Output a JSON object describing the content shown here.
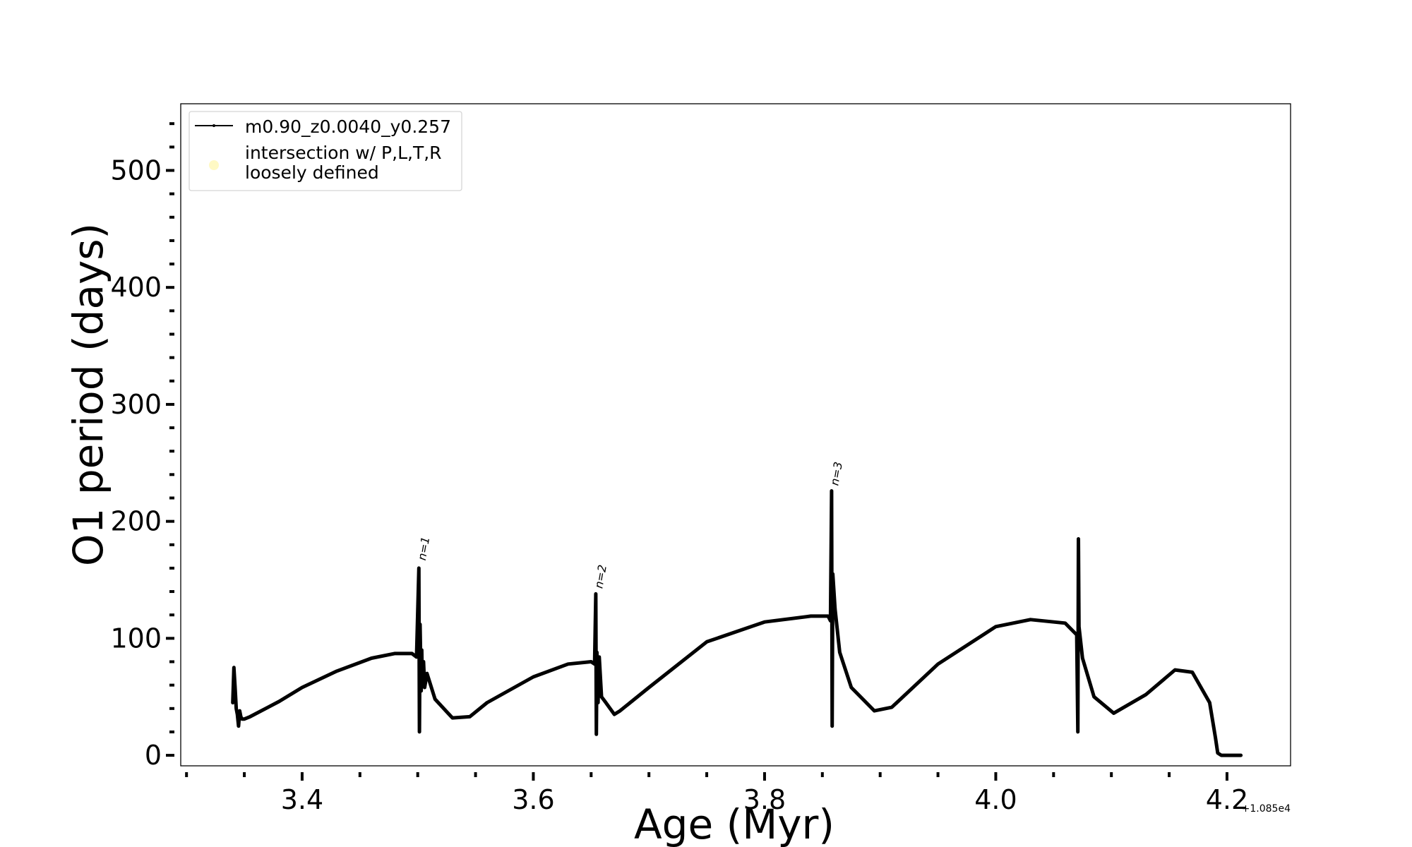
{
  "chart_data": {
    "type": "line",
    "xlabel": "Age (Myr)",
    "ylabel": "O1 period (days)",
    "x_offset_label": "+1.085e4",
    "x_offset": 10850,
    "xlim": [
      10853.295,
      10854.255
    ],
    "ylim": [
      -9,
      557
    ],
    "xticks": [
      3.4,
      3.6,
      3.8,
      4.0,
      4.2
    ],
    "xtick_labels": [
      "3.4",
      "3.6",
      "3.8",
      "4.0",
      "4.2"
    ],
    "yticks": [
      0,
      100,
      200,
      300,
      400,
      500
    ],
    "ytick_labels": [
      "0",
      "100",
      "200",
      "300",
      "400",
      "500"
    ],
    "legend_position": "upper-left",
    "series": [
      {
        "name": "m0.90_z0.0040_y0.257",
        "color": "#000000",
        "x": [
          3.34,
          3.341,
          3.342,
          3.343,
          3.344,
          3.345,
          3.346,
          3.347,
          3.348,
          3.35,
          3.355,
          3.38,
          3.4,
          3.43,
          3.46,
          3.48,
          3.495,
          3.499,
          3.501,
          3.5015,
          3.502,
          3.503,
          3.5035,
          3.504,
          3.505,
          3.506,
          3.508,
          3.515,
          3.53,
          3.545,
          3.56,
          3.6,
          3.63,
          3.65,
          3.653,
          3.654,
          3.6545,
          3.655,
          3.656,
          3.657,
          3.659,
          3.662,
          3.67,
          3.675,
          3.7,
          3.75,
          3.8,
          3.84,
          3.855,
          3.857,
          3.858,
          3.8585,
          3.859,
          3.861,
          3.865,
          3.875,
          3.895,
          3.91,
          3.95,
          4.0,
          4.03,
          4.06,
          4.07,
          4.071,
          4.0715,
          4.072,
          4.075,
          4.085,
          4.102,
          4.13,
          4.155,
          4.17,
          4.185,
          4.19,
          4.192,
          4.195,
          4.212
        ],
        "y": [
          45,
          75,
          58,
          40,
          35,
          25,
          38,
          33,
          31,
          31,
          33,
          46,
          58,
          72,
          83,
          87,
          87,
          84,
          160,
          20,
          112,
          55,
          90,
          60,
          80,
          58,
          70,
          48,
          32,
          33,
          45,
          67,
          78,
          80,
          78,
          138,
          18,
          88,
          45,
          84,
          50,
          46,
          35,
          38,
          58,
          97,
          114,
          119,
          119,
          115,
          226,
          25,
          155,
          125,
          88,
          58,
          38,
          41,
          78,
          110,
          116,
          113,
          103,
          20,
          185,
          110,
          83,
          50,
          36,
          52,
          73,
          71,
          45,
          15,
          2,
          0,
          0
        ]
      },
      {
        "name": "intersection w/ P,L,T,R\nloosely defined",
        "color": "#fff9c4",
        "x": [],
        "y": []
      }
    ],
    "annotations": [
      {
        "text": "n=1",
        "x": 3.503,
        "y": 165
      },
      {
        "text": "n=2",
        "x": 3.656,
        "y": 141
      },
      {
        "text": "n=3",
        "x": 3.86,
        "y": 229
      }
    ]
  }
}
